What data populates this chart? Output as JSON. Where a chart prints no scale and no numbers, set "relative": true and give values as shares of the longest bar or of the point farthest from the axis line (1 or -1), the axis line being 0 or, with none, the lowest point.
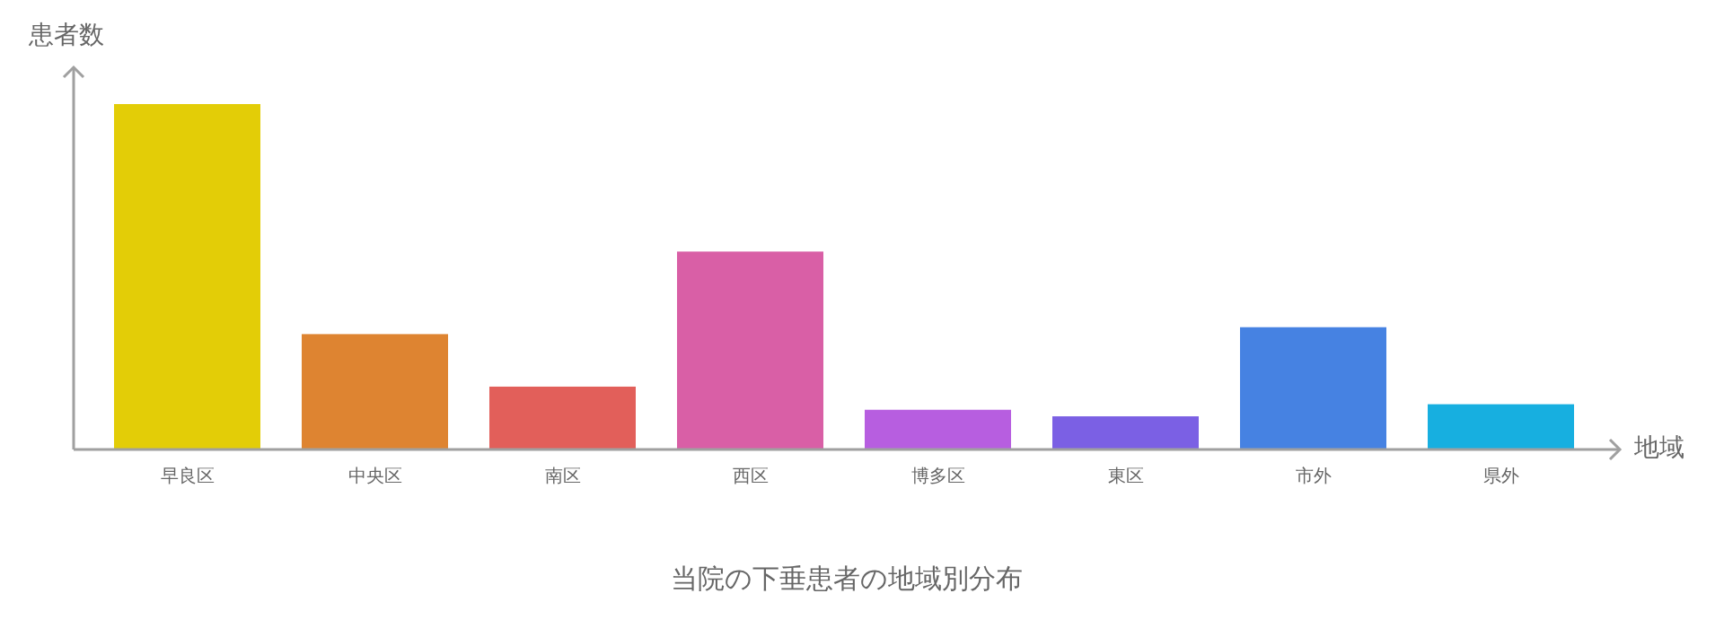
{
  "chart_data": {
    "type": "bar",
    "relative": true,
    "title": "当院の下垂患者の地域別分布",
    "xlabel": "地域",
    "ylabel": "患者数",
    "categories": [
      "早良区",
      "中央区",
      "南区",
      "西区",
      "博多区",
      "東区",
      "市外",
      "県外"
    ],
    "values": [
      1,
      0.334,
      0.182,
      0.573,
      0.115,
      0.096,
      0.354,
      0.131
    ],
    "colors": [
      "#e3cd07",
      "#de8431",
      "#e25f5a",
      "#d95fa6",
      "#b75ee0",
      "#7b60e4",
      "#4682e2",
      "#17afe0"
    ]
  }
}
